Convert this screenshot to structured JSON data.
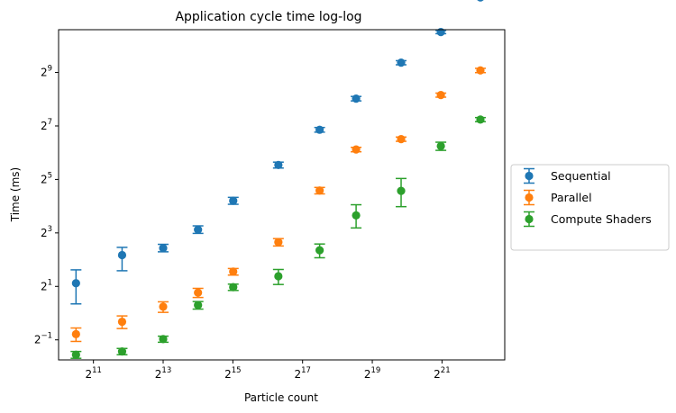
{
  "chart_data": {
    "type": "scatter",
    "title": "Application cycle time log-log",
    "xlabel": "Particle count",
    "ylabel": "Time (ms)",
    "xscale": "log2",
    "yscale": "log2",
    "xlim_exponent": [
      10.0,
      22.8
    ],
    "ylim_exponent": [
      -1.75,
      10.6
    ],
    "x_ticks": [
      {
        "base": "2",
        "exp": "11",
        "value": 2048
      },
      {
        "base": "2",
        "exp": "13",
        "value": 8192
      },
      {
        "base": "2",
        "exp": "15",
        "value": 32768
      },
      {
        "base": "2",
        "exp": "17",
        "value": 131072
      },
      {
        "base": "2",
        "exp": "19",
        "value": 524288
      },
      {
        "base": "2",
        "exp": "21",
        "value": 2097152
      }
    ],
    "y_ticks": [
      {
        "base": "2",
        "exp": "9",
        "value": 512
      },
      {
        "base": "2",
        "exp": "7",
        "value": 128
      },
      {
        "base": "2",
        "exp": "5",
        "value": 32
      },
      {
        "base": "2",
        "exp": "3",
        "value": 8
      },
      {
        "base": "2",
        "exp": "1",
        "value": 2
      },
      {
        "base": "2",
        "exp": "−1",
        "value": 0.5
      }
    ],
    "grid": false,
    "legend_position": "outside-right",
    "series": [
      {
        "name": "Sequential",
        "color": "#1f77b4",
        "points": [
          {
            "x": 1448,
            "y": 2.17,
            "err_lo": 0.9,
            "err_hi": 0.9
          },
          {
            "x": 3620,
            "y": 4.5,
            "err_lo": 1.5,
            "err_hi": 1.0
          },
          {
            "x": 8192,
            "y": 5.4,
            "err_lo": 0.5,
            "err_hi": 0.55
          },
          {
            "x": 16384,
            "y": 8.7,
            "err_lo": 0.8,
            "err_hi": 0.9
          },
          {
            "x": 33000,
            "y": 18.4,
            "err_lo": 1.6,
            "err_hi": 1.7
          },
          {
            "x": 81000,
            "y": 46.5,
            "err_lo": 3.5,
            "err_hi": 3.6
          },
          {
            "x": 184000,
            "y": 116,
            "err_lo": 7,
            "err_hi": 7
          },
          {
            "x": 380000,
            "y": 260,
            "err_lo": 15,
            "err_hi": 15
          },
          {
            "x": 930000,
            "y": 660,
            "err_lo": 35,
            "err_hi": 35
          },
          {
            "x": 2050000,
            "y": 1460,
            "err_lo": 60,
            "err_hi": 60
          },
          {
            "x": 4500000,
            "y": 3580,
            "err_lo": 120,
            "err_hi": 120
          }
        ]
      },
      {
        "name": "Parallel",
        "color": "#ff7f0e",
        "points": [
          {
            "x": 1448,
            "y": 0.58,
            "err_lo": 0.1,
            "err_hi": 0.1
          },
          {
            "x": 3620,
            "y": 0.8,
            "err_lo": 0.13,
            "err_hi": 0.13
          },
          {
            "x": 8192,
            "y": 1.18,
            "err_lo": 0.16,
            "err_hi": 0.16
          },
          {
            "x": 16384,
            "y": 1.7,
            "err_lo": 0.2,
            "err_hi": 0.2
          },
          {
            "x": 33000,
            "y": 2.93,
            "err_lo": 0.25,
            "err_hi": 0.25
          },
          {
            "x": 81000,
            "y": 6.3,
            "err_lo": 0.6,
            "err_hi": 0.6
          },
          {
            "x": 184000,
            "y": 24,
            "err_lo": 2,
            "err_hi": 2
          },
          {
            "x": 380000,
            "y": 69.5,
            "err_lo": 4,
            "err_hi": 4
          },
          {
            "x": 930000,
            "y": 91,
            "err_lo": 5,
            "err_hi": 5
          },
          {
            "x": 2050000,
            "y": 285,
            "err_lo": 15,
            "err_hi": 15
          },
          {
            "x": 4500000,
            "y": 540,
            "err_lo": 30,
            "err_hi": 30
          }
        ]
      },
      {
        "name": "Compute Shaders",
        "color": "#2ca02c",
        "points": [
          {
            "x": 1448,
            "y": 0.34,
            "err_lo": 0.03,
            "err_hi": 0.03
          },
          {
            "x": 3620,
            "y": 0.37,
            "err_lo": 0.03,
            "err_hi": 0.03
          },
          {
            "x": 8192,
            "y": 0.51,
            "err_lo": 0.04,
            "err_hi": 0.04
          },
          {
            "x": 16384,
            "y": 1.23,
            "err_lo": 0.12,
            "err_hi": 0.12
          },
          {
            "x": 33000,
            "y": 1.96,
            "err_lo": 0.16,
            "err_hi": 0.16
          },
          {
            "x": 81000,
            "y": 2.6,
            "err_lo": 0.5,
            "err_hi": 0.5
          },
          {
            "x": 184000,
            "y": 5.1,
            "err_lo": 0.9,
            "err_hi": 0.9
          },
          {
            "x": 380000,
            "y": 12.6,
            "err_lo": 3.5,
            "err_hi": 4
          },
          {
            "x": 930000,
            "y": 23.8,
            "err_lo": 8,
            "err_hi": 9
          },
          {
            "x": 2050000,
            "y": 76,
            "err_lo": 8,
            "err_hi": 8
          },
          {
            "x": 4500000,
            "y": 151,
            "err_lo": 8,
            "err_hi": 8
          }
        ]
      }
    ]
  }
}
